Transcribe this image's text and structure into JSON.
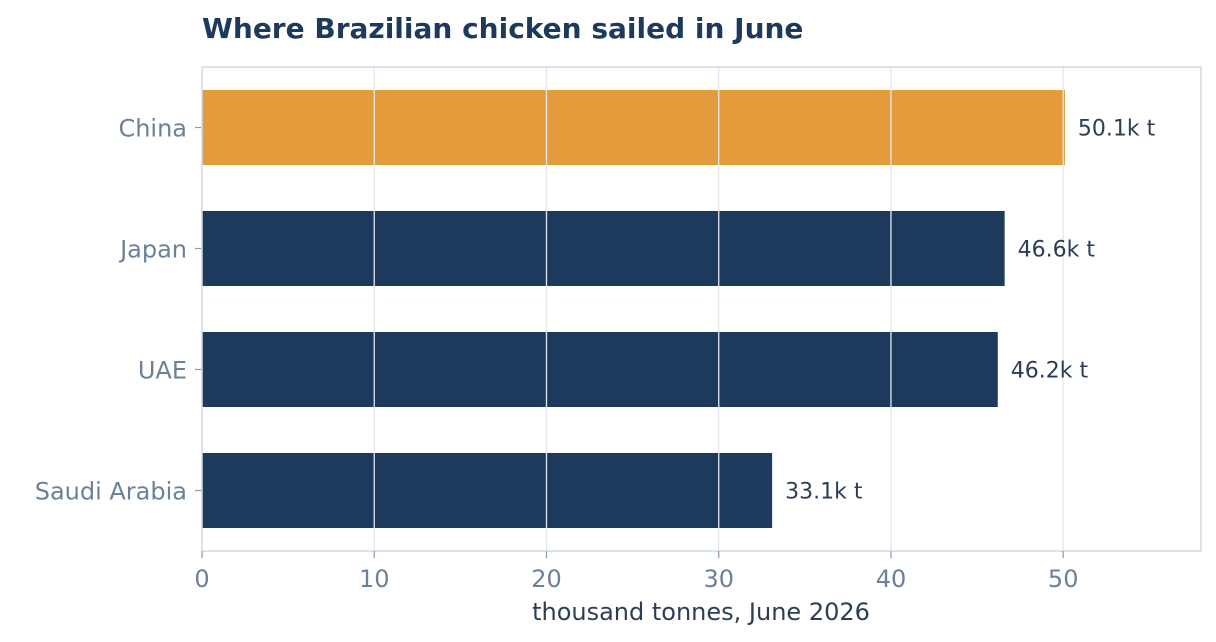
{
  "chart_data": {
    "type": "bar",
    "orientation": "horizontal",
    "title": "Where Brazilian chicken sailed in June",
    "xlabel": "thousand tonnes, June 2026",
    "ylabel": "",
    "categories": [
      "China",
      "Japan",
      "UAE",
      "Saudi Arabia"
    ],
    "values": [
      50.1,
      46.6,
      46.2,
      33.1
    ],
    "value_labels": [
      "50.1k t",
      "46.6k t",
      "46.2k t",
      "33.1k t"
    ],
    "xlim": [
      0,
      58
    ],
    "xticks": [
      0,
      10,
      20,
      30,
      40,
      50
    ],
    "grid": "vertical",
    "legend": "none",
    "colors": {
      "highlight": "#e39b3b",
      "bar": "#1d3a5c",
      "grid": "#e4e8ef",
      "frame": "#cfdbe7"
    },
    "highlight_index": 0
  }
}
